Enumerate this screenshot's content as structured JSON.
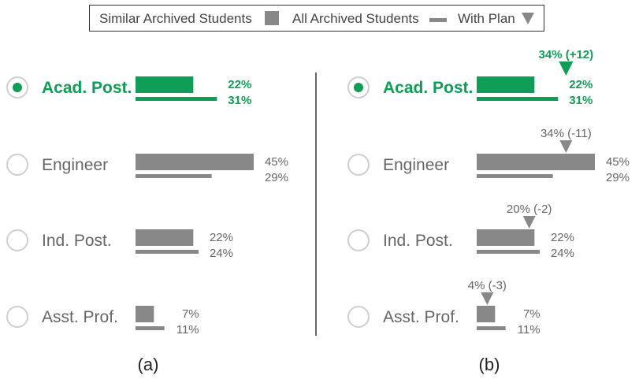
{
  "legend": {
    "similar_label": "Similar Archived Students",
    "all_label": "All Archived Students",
    "plan_label": "With Plan"
  },
  "captions": {
    "a": "(a)",
    "b": "(b)"
  },
  "colors": {
    "selected": "#0f9d58",
    "default_bar": "#888888",
    "default_text": "#666666",
    "radio_border": "#cfcfcf",
    "divider": "#333333"
  },
  "chart_data": [
    {
      "type": "bar",
      "panel": "(a)",
      "categories": [
        "Acad. Post.",
        "Engineer",
        "Ind. Post.",
        "Asst. Prof."
      ],
      "selected": "Acad. Post.",
      "series": [
        {
          "name": "Similar Archived Students",
          "values": [
            22,
            45,
            22,
            7
          ],
          "labels": [
            "22%",
            "45%",
            "22%",
            "7%"
          ]
        },
        {
          "name": "All Archived Students",
          "values": [
            31,
            29,
            24,
            11
          ],
          "labels": [
            "31%",
            "29%",
            "24%",
            "11%"
          ]
        }
      ]
    },
    {
      "type": "bar",
      "panel": "(b)",
      "categories": [
        "Acad. Post.",
        "Engineer",
        "Ind. Post.",
        "Asst. Prof."
      ],
      "selected": "Acad. Post.",
      "series": [
        {
          "name": "Similar Archived Students",
          "values": [
            22,
            45,
            22,
            7
          ],
          "labels": [
            "22%",
            "45%",
            "22%",
            "7%"
          ]
        },
        {
          "name": "All Archived Students",
          "values": [
            31,
            29,
            24,
            11
          ],
          "labels": [
            "31%",
            "29%",
            "24%",
            "11%"
          ]
        },
        {
          "name": "With Plan",
          "values": [
            34,
            34,
            20,
            4
          ],
          "labels": [
            "34% (+12)",
            "34% (-11)",
            "20% (-2)",
            "4% (-3)"
          ]
        }
      ]
    }
  ]
}
